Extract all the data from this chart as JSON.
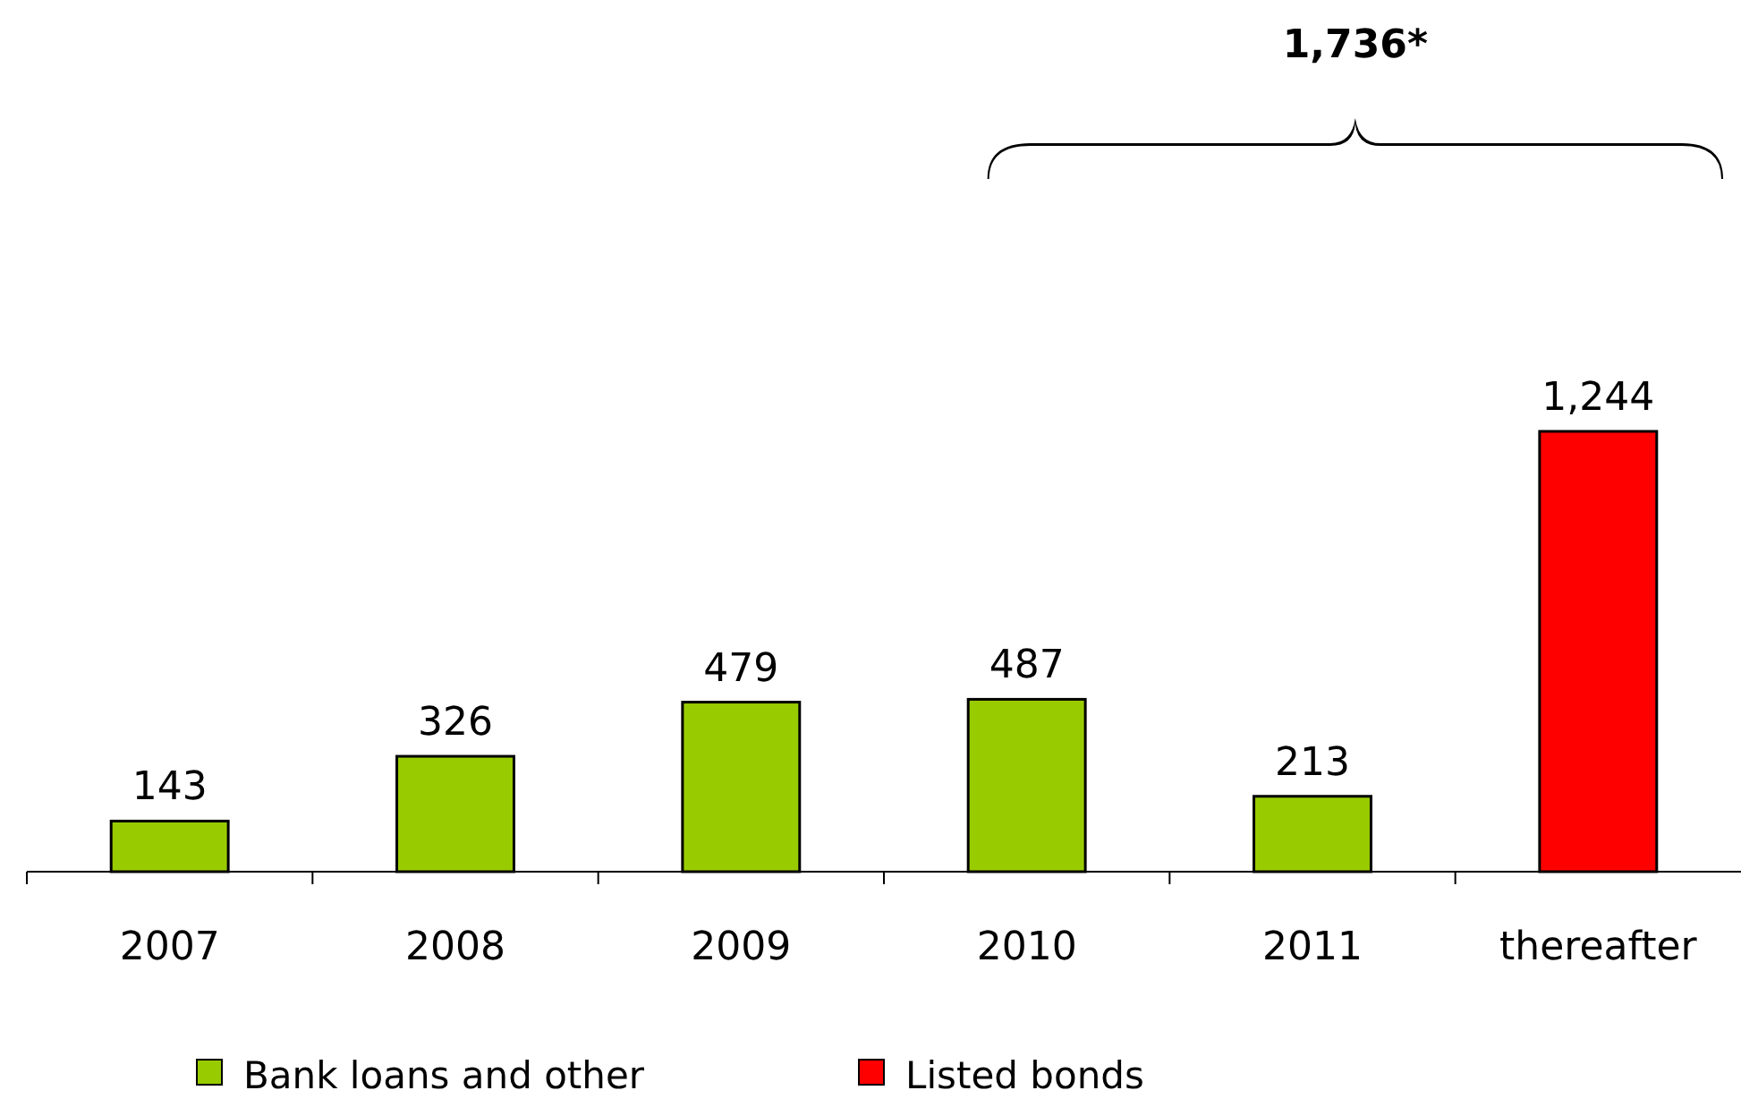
{
  "chart_data": {
    "type": "bar",
    "categories": [
      "2007",
      "2008",
      "2009",
      "2010",
      "2011",
      "thereafter"
    ],
    "series": [
      {
        "name": "Bank loans and other",
        "color": "#99cc00",
        "values": [
          143,
          326,
          479,
          487,
          213,
          null
        ],
        "value_labels": [
          "143",
          "326",
          "479",
          "487",
          "213",
          null
        ]
      },
      {
        "name": "Listed bonds",
        "color": "#ff0000",
        "values": [
          null,
          null,
          null,
          null,
          null,
          1244
        ],
        "value_labels": [
          null,
          null,
          null,
          null,
          null,
          "1,244"
        ]
      }
    ],
    "legend": "bottom",
    "annotations": [
      "1,736*"
    ]
  }
}
